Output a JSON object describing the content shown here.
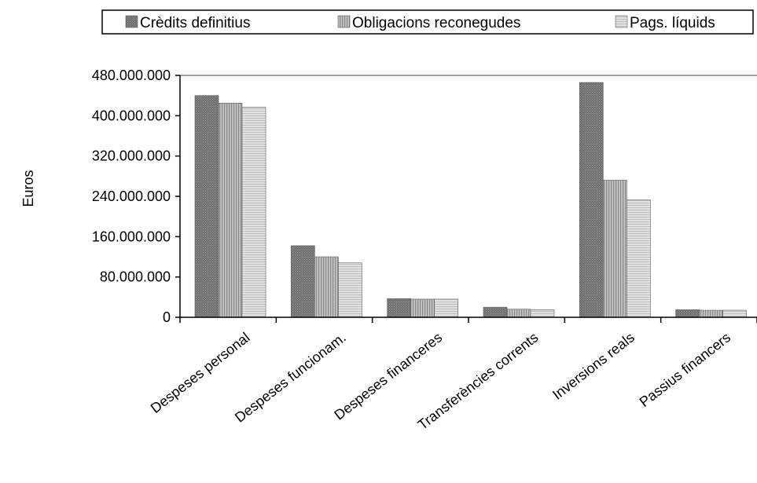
{
  "chart_data": {
    "type": "bar",
    "ylabel": "Euros",
    "xlabel": "",
    "ylim": [
      0,
      480000000
    ],
    "yticks": [
      0,
      80000000,
      160000000,
      240000000,
      320000000,
      400000000,
      480000000
    ],
    "ytick_labels": [
      "0",
      "80.000.000",
      "160.000.000",
      "240.000.000",
      "320.000.000",
      "400.000.000",
      "480.000.000"
    ],
    "grid": false,
    "legend_position": "top",
    "categories": [
      "Despeses personal",
      "Despeses funcionam.",
      "Despeses financeres",
      "Transferències corrents",
      "Inversions reals",
      "Passius financers"
    ],
    "series": [
      {
        "name": "Crèdits definitius",
        "values": [
          440000000,
          142000000,
          37000000,
          20000000,
          466000000,
          15000000
        ],
        "color": "#7a7a7a",
        "pattern": "cross"
      },
      {
        "name": "Obligacions reconegudes",
        "values": [
          425000000,
          120000000,
          36000000,
          16000000,
          272000000,
          14000000
        ],
        "color": "#a9a9a9",
        "pattern": "vertical"
      },
      {
        "name": "Pags. líquids",
        "values": [
          417000000,
          108000000,
          36000000,
          15000000,
          233000000,
          14000000
        ],
        "color": "#d6d6d6",
        "pattern": "horizontal"
      }
    ]
  }
}
